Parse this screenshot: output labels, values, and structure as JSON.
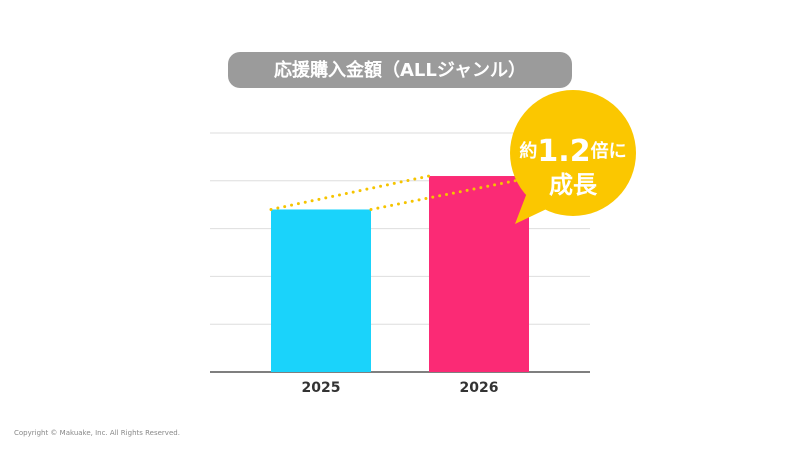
{
  "chart_data": {
    "type": "bar",
    "title": "応援購入金額（ALLジャンル）",
    "categories": [
      "2025",
      "2026"
    ],
    "values": [
      3.4,
      4.1
    ],
    "colors": [
      "#1ad3fb",
      "#fb2a75"
    ],
    "ylim": [
      0,
      5
    ],
    "yticks": [
      0,
      1,
      2,
      3,
      4,
      5
    ],
    "grid": true,
    "annotation": {
      "prefix": "約",
      "number": "1.2",
      "suffix": "倍に",
      "line2": "成長"
    }
  },
  "footer": "Copyright © Makuake, Inc. All Rights Reserved."
}
